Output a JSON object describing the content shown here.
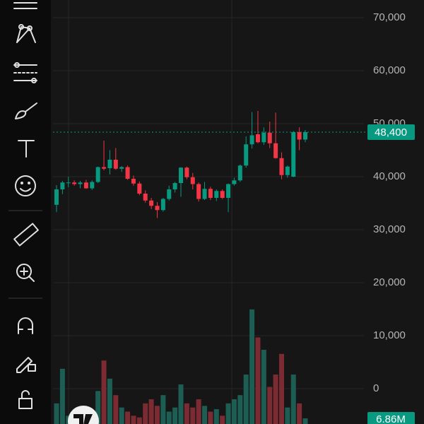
{
  "chart_data": {
    "type": "candlestick",
    "colors": {
      "up": "#089981",
      "down": "#f23645",
      "volume_up": "#1d5e54",
      "volume_down": "#7d2b33"
    },
    "ylim": [
      -6667,
      73333
    ],
    "yticks": [
      {
        "value": 70000,
        "label": "70,000"
      },
      {
        "value": 60000,
        "label": "60,000"
      },
      {
        "value": 50000,
        "label": "50,000"
      },
      {
        "value": 40000,
        "label": "40,000"
      },
      {
        "value": 30000,
        "label": "30,000"
      },
      {
        "value": 20000,
        "label": "20,000"
      },
      {
        "value": 10000,
        "label": "10,000"
      },
      0
    ],
    "grid": true,
    "last_price": {
      "value": 48400,
      "label": "48,400"
    },
    "open": [
      34700,
      37600,
      38800,
      38900,
      38600,
      38900,
      37800,
      39000,
      41800,
      41600,
      43200,
      41500,
      41800,
      39600,
      38700,
      36800,
      35500,
      34500,
      33700,
      35800,
      37600,
      38800,
      41700,
      39900,
      38600,
      35800,
      37700,
      36000,
      37300,
      36000,
      38600,
      39300,
      42100,
      46100,
      48000,
      46500,
      48300,
      46300,
      43500,
      40300,
      40000,
      48400,
      47000
    ],
    "high": [
      38400,
      39200,
      40000,
      39300,
      39200,
      39400,
      39300,
      41900,
      46800,
      45000,
      45400,
      42000,
      42100,
      40200,
      39100,
      37400,
      36000,
      35200,
      36000,
      38300,
      39000,
      41800,
      41900,
      40700,
      38900,
      39000,
      38100,
      37600,
      37600,
      38700,
      39800,
      42300,
      47600,
      52200,
      52400,
      49300,
      50400,
      52100,
      44600,
      42100,
      48600,
      49300,
      48800
    ],
    "low": [
      33300,
      36700,
      38000,
      38300,
      37800,
      37700,
      37500,
      38800,
      41200,
      40400,
      41300,
      40900,
      39400,
      38300,
      36500,
      35100,
      33900,
      32200,
      33400,
      35500,
      37000,
      36200,
      39500,
      37600,
      35300,
      35600,
      35600,
      35400,
      35800,
      33300,
      38300,
      39000,
      41700,
      45300,
      46300,
      46000,
      45400,
      43400,
      39500,
      39800,
      39900,
      45000,
      46500
    ],
    "close": [
      37600,
      38900,
      38900,
      38600,
      38900,
      37800,
      39000,
      41800,
      41500,
      43200,
      41500,
      41800,
      39600,
      38700,
      36800,
      35500,
      34500,
      33700,
      35800,
      37600,
      38800,
      41700,
      39900,
      38600,
      35800,
      37700,
      36000,
      37300,
      36000,
      38600,
      39300,
      42100,
      46100,
      47800,
      46500,
      48300,
      46300,
      43500,
      40300,
      41900,
      48400,
      47000,
      48400
    ],
    "volume": {
      "values": [
        25,
        67,
        10,
        8,
        5,
        12,
        15,
        40,
        77,
        55,
        35,
        20,
        15,
        10,
        8,
        25,
        30,
        22,
        35,
        15,
        20,
        48,
        25,
        20,
        30,
        22,
        15,
        18,
        10,
        25,
        30,
        35,
        60,
        139,
        105,
        90,
        45,
        60,
        85,
        20,
        60,
        25,
        6.86
      ],
      "value_labels": [
        null,
        null,
        null,
        null,
        null,
        null,
        null,
        null,
        null,
        null,
        null,
        null,
        null,
        null,
        null,
        null,
        null,
        null,
        null,
        null,
        null,
        null,
        null,
        null,
        null,
        null,
        null,
        null,
        null,
        null,
        null,
        null,
        null,
        null,
        null,
        null,
        null,
        null,
        null,
        null,
        null,
        null,
        "6.86M"
      ],
      "ylim": [
        0,
        180
      ]
    }
  }
}
